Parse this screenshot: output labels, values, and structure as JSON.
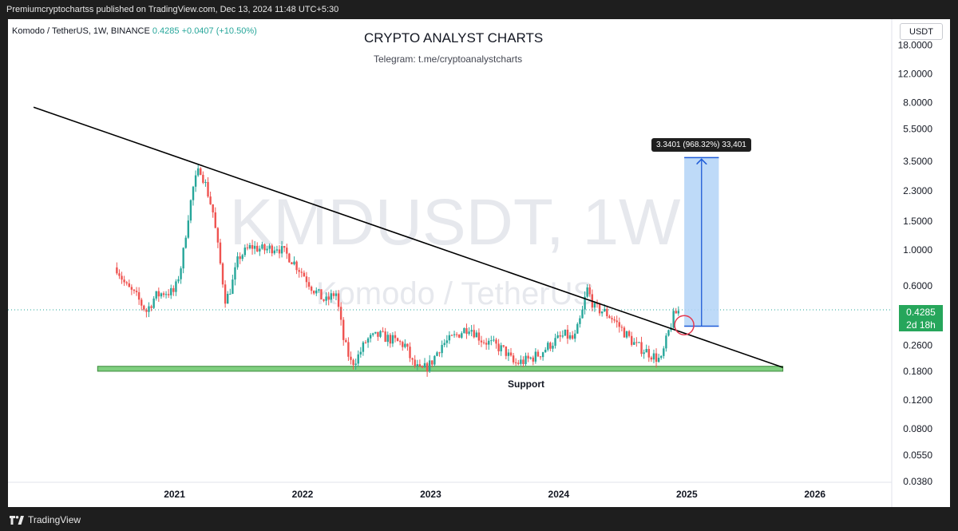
{
  "header": {
    "published": "Premiumcryptochartss published on TradingView.com, Dec 13, 2024 11:48 UTC+5:30"
  },
  "legend": {
    "symbol": "Komodo / TetherUS, 1W, BINANCE",
    "price": "0.4285",
    "change": "+0.0407 (+10.50%)"
  },
  "annotations": {
    "title": "CRYPTO ANALYST CHARTS",
    "subtitle": "Telegram: t.me/cryptoanalystcharts",
    "watermark_main": "KMDUSDT, 1W",
    "watermark_sub": "Komodo / TetherUS",
    "support_label": "Support",
    "measure_label": "3.3401 (968.32%) 33,401"
  },
  "toolbar": {
    "currency": "USDT"
  },
  "price_tag": {
    "price": "0.4285",
    "countdown": "2d 18h"
  },
  "footer": {
    "brand": "TradingView"
  },
  "colors": {
    "up": "#26a69a",
    "down": "#ef5350",
    "support_zone": "#7fcf7f",
    "measure_fill": "#b3d3f7",
    "measure_line": "#1e5bd7",
    "trendline": "#000000",
    "circle": "#e53950",
    "price_tag": "#26a65b"
  },
  "chart_data": {
    "type": "candlestick",
    "timeframe": "1W",
    "y_scale": "log",
    "x_axis": {
      "tick_labels": [
        "2021",
        "2022",
        "2023",
        "2024",
        "2025",
        "2026"
      ]
    },
    "y_axis": {
      "tick_labels": [
        "18.0000",
        "12.0000",
        "8.0000",
        "5.5000",
        "3.5000",
        "2.3000",
        "1.5000",
        "1.0000",
        "0.6000",
        "0.2600",
        "0.1800",
        "0.1200",
        "0.0800",
        "0.0550",
        "0.0380"
      ],
      "ylim": [
        0.0375,
        26
      ]
    },
    "xlim": [
      2019.7,
      2026.6
    ],
    "anchors": [
      [
        2020.55,
        0.78
      ],
      [
        2020.62,
        0.6
      ],
      [
        2020.7,
        0.52
      ],
      [
        2020.78,
        0.42
      ],
      [
        2020.85,
        0.52
      ],
      [
        2020.92,
        0.55
      ],
      [
        2021.0,
        0.55
      ],
      [
        2021.06,
        0.85
      ],
      [
        2021.1,
        1.5
      ],
      [
        2021.15,
        2.5
      ],
      [
        2021.2,
        3.2
      ],
      [
        2021.25,
        2.4
      ],
      [
        2021.3,
        1.7
      ],
      [
        2021.35,
        0.9
      ],
      [
        2021.4,
        0.48
      ],
      [
        2021.45,
        0.62
      ],
      [
        2021.5,
        0.9
      ],
      [
        2021.6,
        1.05
      ],
      [
        2021.7,
        1.0
      ],
      [
        2021.8,
        1.05
      ],
      [
        2021.9,
        0.9
      ],
      [
        2022.0,
        0.72
      ],
      [
        2022.08,
        0.58
      ],
      [
        2022.18,
        0.48
      ],
      [
        2022.26,
        0.55
      ],
      [
        2022.32,
        0.28
      ],
      [
        2022.38,
        0.2
      ],
      [
        2022.43,
        0.22
      ],
      [
        2022.5,
        0.28
      ],
      [
        2022.6,
        0.3
      ],
      [
        2022.7,
        0.28
      ],
      [
        2022.8,
        0.26
      ],
      [
        2022.86,
        0.2
      ],
      [
        2022.92,
        0.18
      ],
      [
        2023.0,
        0.2
      ],
      [
        2023.08,
        0.26
      ],
      [
        2023.15,
        0.28
      ],
      [
        2023.3,
        0.34
      ],
      [
        2023.4,
        0.28
      ],
      [
        2023.5,
        0.26
      ],
      [
        2023.58,
        0.24
      ],
      [
        2023.65,
        0.2
      ],
      [
        2023.75,
        0.21
      ],
      [
        2023.85,
        0.23
      ],
      [
        2023.95,
        0.27
      ],
      [
        2024.05,
        0.3
      ],
      [
        2024.12,
        0.28
      ],
      [
        2024.18,
        0.4
      ],
      [
        2024.22,
        0.58
      ],
      [
        2024.28,
        0.44
      ],
      [
        2024.35,
        0.42
      ],
      [
        2024.42,
        0.38
      ],
      [
        2024.5,
        0.32
      ],
      [
        2024.6,
        0.26
      ],
      [
        2024.68,
        0.24
      ],
      [
        2024.75,
        0.22
      ],
      [
        2024.8,
        0.21
      ],
      [
        2024.85,
        0.3
      ],
      [
        2024.9,
        0.4
      ],
      [
        2024.95,
        0.4285
      ]
    ],
    "trendline": {
      "from": [
        2019.9,
        7.5
      ],
      "to": [
        2025.75,
        0.19
      ]
    },
    "support_zone": {
      "x_from": 2020.4,
      "x_to": 2025.75,
      "low": 0.18,
      "high": 0.193
    },
    "measure": {
      "x_from": 2024.98,
      "x_to": 2025.25,
      "from": 0.34,
      "to": 3.68
    },
    "circle": {
      "x": 2024.98,
      "y": 0.345
    }
  }
}
